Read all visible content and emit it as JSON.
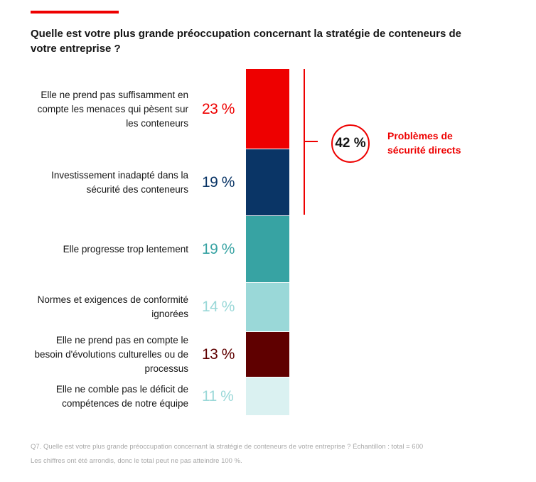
{
  "title": "Quelle est votre plus grande préoccupation concernant la stratégie de conteneurs de votre entreprise ?",
  "chart_data": {
    "type": "bar",
    "orientation": "stacked-vertical",
    "unit": "%",
    "categories": [
      "Elle ne prend pas suffisamment en compte les menaces qui pèsent sur les conteneurs",
      "Investissement inadapté dans la sécurité des conteneurs",
      "Elle progresse trop lentement",
      "Normes et exigences de conformité ignorées",
      "Elle ne prend pas en compte le besoin d'évolutions culturelles ou de processus",
      "Elle ne comble pas le déficit de compétences de notre équipe"
    ],
    "values": [
      23,
      19,
      19,
      14,
      13,
      11
    ],
    "value_labels": [
      "23 %",
      "19 %",
      "19 %",
      "14 %",
      "13 %",
      "11 %"
    ],
    "colors": [
      "#ee0000",
      "#0a3566",
      "#37a3a3",
      "#9ad8d8",
      "#5f0000",
      "#daf1f1"
    ],
    "label_colors": [
      "#ee0000",
      "#0a3566",
      "#37a3a3",
      "#9ad8d8",
      "#5f0000",
      "#9ad8d8"
    ],
    "group": {
      "value": 42,
      "value_label": "42 %",
      "label": "Problèmes de sécurité directs",
      "covers": [
        0,
        1
      ],
      "color": "#ee0000"
    }
  },
  "footnotes": [
    "Q7. Quelle est votre plus grande préoccupation concernant la stratégie de conteneurs de votre entreprise ? Échantillon : total = 600",
    "Les chiffres ont été arrondis, donc le total peut ne pas atteindre 100 %."
  ]
}
